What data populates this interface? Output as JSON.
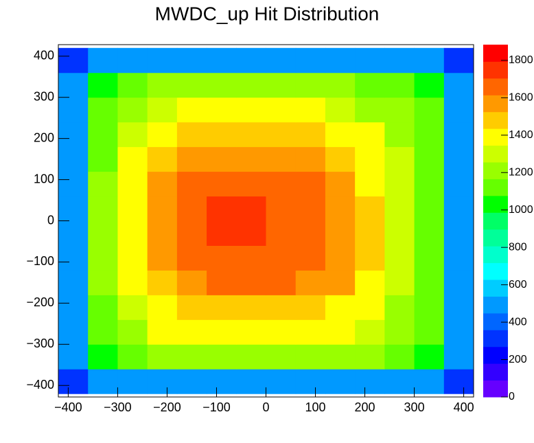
{
  "chart_data": {
    "type": "heatmap",
    "title": "MWDC_up Hit Distribution",
    "xbins": [
      -420,
      -360,
      -300,
      -240,
      -180,
      -120,
      -60,
      0,
      60,
      120,
      180,
      240,
      300,
      360,
      420
    ],
    "ybins": [
      -420,
      -360,
      -300,
      -240,
      -180,
      -120,
      -60,
      0,
      60,
      120,
      180,
      240,
      300,
      360,
      420
    ],
    "z": [
      [
        300,
        450,
        500,
        500,
        500,
        500,
        500,
        500,
        500,
        500,
        500,
        500,
        450,
        300
      ],
      [
        450,
        1000,
        1150,
        1200,
        1250,
        1250,
        1250,
        1250,
        1250,
        1200,
        1200,
        1150,
        1000,
        450
      ],
      [
        500,
        1100,
        1250,
        1350,
        1400,
        1400,
        1400,
        1400,
        1400,
        1350,
        1300,
        1250,
        1100,
        500
      ],
      [
        500,
        1150,
        1300,
        1400,
        1500,
        1500,
        1500,
        1500,
        1450,
        1400,
        1350,
        1250,
        1150,
        500
      ],
      [
        500,
        1200,
        1350,
        1500,
        1600,
        1650,
        1650,
        1650,
        1600,
        1550,
        1400,
        1300,
        1150,
        500
      ],
      [
        500,
        1200,
        1400,
        1550,
        1650,
        1700,
        1700,
        1700,
        1650,
        1600,
        1450,
        1300,
        1150,
        500
      ],
      [
        500,
        1200,
        1400,
        1550,
        1700,
        1750,
        1750,
        1700,
        1700,
        1600,
        1450,
        1300,
        1150,
        500
      ],
      [
        500,
        1200,
        1400,
        1600,
        1700,
        1750,
        1750,
        1700,
        1700,
        1600,
        1450,
        1300,
        1150,
        500
      ],
      [
        500,
        1200,
        1400,
        1550,
        1650,
        1700,
        1700,
        1700,
        1650,
        1550,
        1400,
        1300,
        1150,
        500
      ],
      [
        500,
        1150,
        1350,
        1450,
        1550,
        1600,
        1600,
        1600,
        1550,
        1500,
        1400,
        1300,
        1150,
        500
      ],
      [
        500,
        1150,
        1300,
        1400,
        1450,
        1500,
        1500,
        1500,
        1450,
        1400,
        1350,
        1250,
        1100,
        500
      ],
      [
        500,
        1100,
        1250,
        1300,
        1350,
        1400,
        1400,
        1400,
        1350,
        1300,
        1250,
        1200,
        1100,
        500
      ],
      [
        450,
        1000,
        1150,
        1200,
        1250,
        1250,
        1250,
        1250,
        1200,
        1200,
        1150,
        1100,
        1000,
        450
      ],
      [
        300,
        450,
        500,
        500,
        500,
        500,
        500,
        500,
        500,
        500,
        500,
        500,
        450,
        300
      ]
    ],
    "xlim": [
      -420,
      420
    ],
    "ylim": [
      -428,
      428
    ],
    "zlim": [
      0,
      1884
    ],
    "xticks": [
      {
        "value": -400,
        "label": "−400"
      },
      {
        "value": -300,
        "label": "−300"
      },
      {
        "value": -200,
        "label": "−200"
      },
      {
        "value": -100,
        "label": "−100"
      },
      0,
      100,
      200,
      300,
      400
    ],
    "yticks": [
      {
        "value": -400,
        "label": "−400"
      },
      {
        "value": -300,
        "label": "−300"
      },
      {
        "value": -200,
        "label": "−200"
      },
      {
        "value": -100,
        "label": "−100"
      },
      0,
      100,
      200,
      300,
      400
    ],
    "zticks": [
      0,
      200,
      400,
      600,
      800,
      1000,
      1200,
      1400,
      1600,
      1800
    ],
    "palette": [
      "#6600ff",
      "#3300ff",
      "#0000ff",
      "#0033ff",
      "#0066ff",
      "#0099ff",
      "#00ccff",
      "#00ffff",
      "#00ffcc",
      "#00ff99",
      "#00ff66",
      "#00ff00",
      "#66ff00",
      "#99ff00",
      "#ccff00",
      "#ffff00",
      "#ffcc00",
      "#ff9900",
      "#ff6600",
      "#ff3300",
      "#ff0000"
    ]
  }
}
